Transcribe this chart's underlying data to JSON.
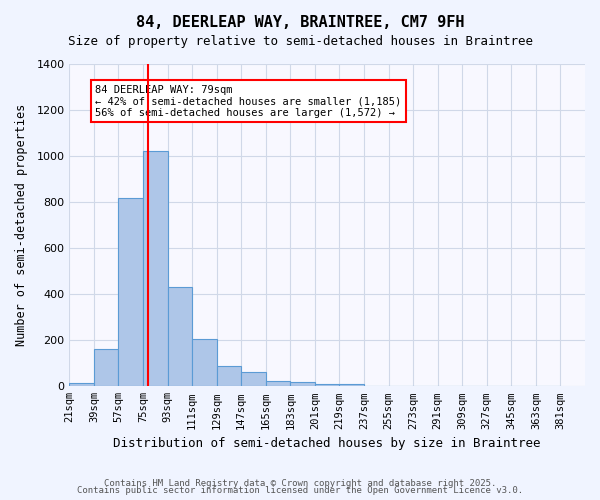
{
  "title1": "84, DEERLEAP WAY, BRAINTREE, CM7 9FH",
  "title2": "Size of property relative to semi-detached houses in Braintree",
  "xlabel": "Distribution of semi-detached houses by size in Braintree",
  "ylabel": "Number of semi-detached properties",
  "bin_labels": [
    "21sqm",
    "39sqm",
    "57sqm",
    "75sqm",
    "93sqm",
    "111sqm",
    "129sqm",
    "147sqm",
    "165sqm",
    "183sqm",
    "201sqm",
    "219sqm",
    "237sqm",
    "255sqm",
    "273sqm",
    "291sqm",
    "309sqm",
    "327sqm",
    "345sqm",
    "363sqm",
    "381sqm"
  ],
  "bin_edges": [
    21,
    39,
    57,
    75,
    93,
    111,
    129,
    147,
    165,
    183,
    201,
    219,
    237,
    255,
    273,
    291,
    309,
    327,
    345,
    363,
    381
  ],
  "bar_values": [
    15,
    160,
    820,
    1020,
    430,
    205,
    90,
    60,
    25,
    20,
    10,
    10,
    0,
    0,
    0,
    0,
    0,
    0,
    0,
    0
  ],
  "bar_color": "#aec6e8",
  "bar_edge_color": "#5b9bd5",
  "property_line_x": 79,
  "property_line_color": "red",
  "annotation_text": "84 DEERLEAP WAY: 79sqm\n← 42% of semi-detached houses are smaller (1,185)\n56% of semi-detached houses are larger (1,572) →",
  "annotation_color": "red",
  "ylim": [
    0,
    1400
  ],
  "yticks": [
    0,
    200,
    400,
    600,
    800,
    1000,
    1200,
    1400
  ],
  "bg_color": "#f0f4ff",
  "plot_bg_color": "#f8f8ff",
  "footer_line1": "Contains HM Land Registry data © Crown copyright and database right 2025.",
  "footer_line2": "Contains public sector information licensed under the Open Government Licence v3.0.",
  "grid_color": "#d0d8e8"
}
